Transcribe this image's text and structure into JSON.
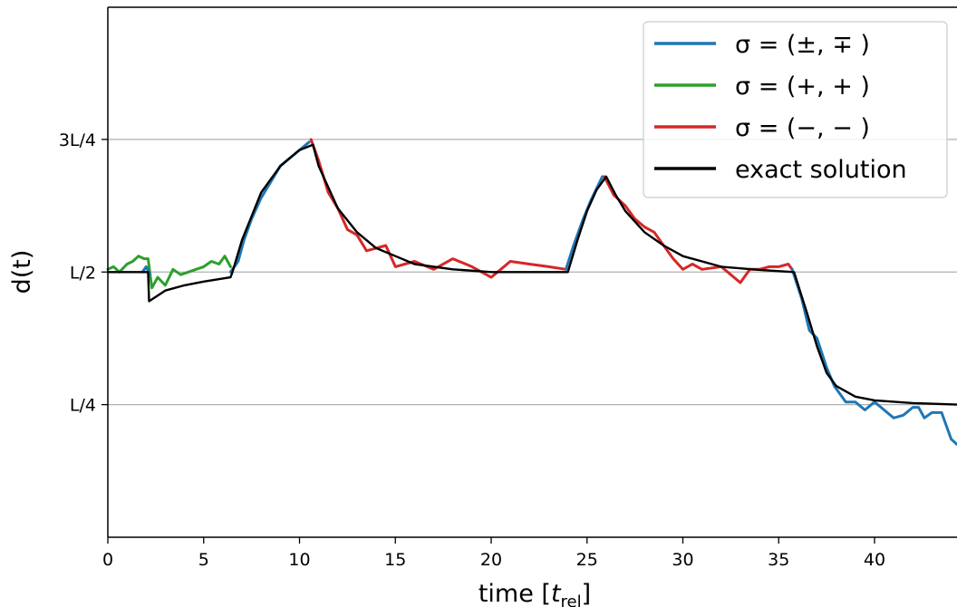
{
  "chart_data": {
    "type": "line",
    "xlabel_main": "time [",
    "xlabel_sym": "t",
    "xlabel_sub": "rel",
    "xlabel_end": "]",
    "ylabel": "d(t)",
    "xlim": [
      0,
      44.3
    ],
    "ylim": [
      0,
      1
    ],
    "grid": "horizontal",
    "legend_position": "top-right",
    "x_ticks": [
      0,
      5,
      10,
      15,
      20,
      25,
      30,
      35,
      40
    ],
    "x_tick_labels": [
      "0",
      "5",
      "10",
      "15",
      "20",
      "25",
      "30",
      "35",
      "40"
    ],
    "y_ticks": [
      0.25,
      0.5,
      0.75
    ],
    "y_tick_labels": [
      "L/4",
      "L/2",
      "3L/4"
    ],
    "colors": {
      "blue": "#1f77b4",
      "green": "#2ca02c",
      "red": "#d62728",
      "black": "#000000"
    },
    "legend": [
      {
        "label": "σ = (±, ∓ )",
        "color": "#1f77b4"
      },
      {
        "label": "σ = (+, + )",
        "color": "#2ca02c"
      },
      {
        "label": "σ = (−, − )",
        "color": "#d62728"
      },
      {
        "label": "exact solution",
        "color": "#000000"
      }
    ],
    "series": [
      {
        "name": "exact solution",
        "color": "#000000",
        "points": [
          [
            0,
            0.5
          ],
          [
            2.1,
            0.5
          ],
          [
            2.15,
            0.445
          ],
          [
            3,
            0.465
          ],
          [
            4,
            0.475
          ],
          [
            5,
            0.482
          ],
          [
            6.4,
            0.49
          ],
          [
            6.5,
            0.5
          ],
          [
            7,
            0.56
          ],
          [
            8,
            0.65
          ],
          [
            9,
            0.7
          ],
          [
            10,
            0.73
          ],
          [
            10.7,
            0.74
          ],
          [
            11,
            0.7
          ],
          [
            12,
            0.62
          ],
          [
            13,
            0.575
          ],
          [
            14,
            0.545
          ],
          [
            15,
            0.53
          ],
          [
            16,
            0.515
          ],
          [
            18,
            0.505
          ],
          [
            20,
            0.5
          ],
          [
            24,
            0.5
          ],
          [
            24.5,
            0.56
          ],
          [
            25,
            0.615
          ],
          [
            25.5,
            0.655
          ],
          [
            26,
            0.68
          ],
          [
            26.5,
            0.645
          ],
          [
            27,
            0.615
          ],
          [
            28,
            0.575
          ],
          [
            29,
            0.55
          ],
          [
            30,
            0.53
          ],
          [
            32,
            0.51
          ],
          [
            34,
            0.504
          ],
          [
            35.8,
            0.5
          ],
          [
            36.5,
            0.42
          ],
          [
            37,
            0.36
          ],
          [
            37.5,
            0.31
          ],
          [
            38,
            0.285
          ],
          [
            39,
            0.265
          ],
          [
            40,
            0.258
          ],
          [
            42,
            0.253
          ],
          [
            44.3,
            0.25
          ]
        ]
      },
      {
        "name": "σ = (+, + )",
        "color": "#2ca02c",
        "points": [
          [
            0,
            0.505
          ],
          [
            0.3,
            0.51
          ],
          [
            0.6,
            0.5
          ],
          [
            1,
            0.515
          ],
          [
            1.3,
            0.52
          ],
          [
            1.6,
            0.53
          ],
          [
            1.9,
            0.525
          ],
          [
            2.1,
            0.525
          ],
          [
            2.3,
            0.47
          ],
          [
            2.6,
            0.49
          ],
          [
            3,
            0.475
          ],
          [
            3.4,
            0.505
          ],
          [
            3.8,
            0.495
          ],
          [
            4.2,
            0.5
          ],
          [
            4.6,
            0.505
          ],
          [
            5,
            0.51
          ],
          [
            5.4,
            0.52
          ],
          [
            5.8,
            0.515
          ],
          [
            6.1,
            0.53
          ],
          [
            6.4,
            0.51
          ]
        ]
      },
      {
        "name": "σ = (±, ∓ )",
        "color": "#1f77b4",
        "points": [
          [
            1.8,
            0.5
          ],
          [
            2.0,
            0.51
          ],
          [
            2.2,
            0.495
          ]
        ]
      },
      {
        "name": "σ = (±, ∓ )",
        "color": "#1f77b4",
        "points": [
          [
            6.4,
            0.5
          ],
          [
            6.8,
            0.52
          ],
          [
            7.1,
            0.56
          ],
          [
            7.5,
            0.6
          ],
          [
            8,
            0.64
          ],
          [
            8.5,
            0.67
          ],
          [
            9,
            0.7
          ],
          [
            9.5,
            0.715
          ],
          [
            10,
            0.73
          ],
          [
            10.5,
            0.745
          ]
        ]
      },
      {
        "name": "σ = (−, − )",
        "color": "#d62728",
        "points": [
          [
            10.6,
            0.75
          ],
          [
            11,
            0.71
          ],
          [
            11.5,
            0.65
          ],
          [
            12,
            0.62
          ],
          [
            12.5,
            0.58
          ],
          [
            13,
            0.57
          ],
          [
            13.5,
            0.54
          ],
          [
            14,
            0.545
          ],
          [
            14.5,
            0.55
          ],
          [
            15,
            0.51
          ],
          [
            16,
            0.52
          ],
          [
            17,
            0.505
          ],
          [
            18,
            0.525
          ],
          [
            19,
            0.51
          ],
          [
            20,
            0.49
          ],
          [
            20.5,
            0.505
          ],
          [
            21,
            0.52
          ],
          [
            22,
            0.515
          ],
          [
            23,
            0.51
          ],
          [
            23.9,
            0.505
          ]
        ]
      },
      {
        "name": "σ = (±, ∓ )",
        "color": "#1f77b4",
        "points": [
          [
            23.9,
            0.505
          ],
          [
            24.3,
            0.55
          ],
          [
            24.8,
            0.6
          ],
          [
            25.2,
            0.635
          ],
          [
            25.8,
            0.68
          ]
        ]
      },
      {
        "name": "σ = (−, − )",
        "color": "#d62728",
        "points": [
          [
            25.9,
            0.68
          ],
          [
            26.4,
            0.645
          ],
          [
            27,
            0.625
          ],
          [
            27.5,
            0.6
          ],
          [
            28,
            0.585
          ],
          [
            28.5,
            0.575
          ],
          [
            29,
            0.55
          ],
          [
            29.5,
            0.525
          ],
          [
            30,
            0.505
          ],
          [
            30.5,
            0.515
          ],
          [
            31,
            0.505
          ],
          [
            32,
            0.51
          ],
          [
            32.5,
            0.495
          ],
          [
            33,
            0.48
          ],
          [
            33.5,
            0.505
          ],
          [
            34,
            0.505
          ],
          [
            34.5,
            0.51
          ],
          [
            35,
            0.51
          ],
          [
            35.5,
            0.515
          ],
          [
            35.7,
            0.505
          ]
        ]
      },
      {
        "name": "σ = (±, ∓ )",
        "color": "#1f77b4",
        "points": [
          [
            35.7,
            0.505
          ],
          [
            36.2,
            0.45
          ],
          [
            36.6,
            0.39
          ],
          [
            37,
            0.375
          ],
          [
            37.5,
            0.32
          ],
          [
            37.9,
            0.285
          ],
          [
            38.5,
            0.255
          ],
          [
            39,
            0.255
          ],
          [
            39.5,
            0.24
          ],
          [
            40,
            0.255
          ],
          [
            40.5,
            0.24
          ],
          [
            41,
            0.225
          ],
          [
            41.5,
            0.23
          ],
          [
            42,
            0.245
          ],
          [
            42.3,
            0.245
          ],
          [
            42.6,
            0.225
          ],
          [
            43,
            0.235
          ],
          [
            43.5,
            0.235
          ],
          [
            44,
            0.185
          ],
          [
            44.3,
            0.175
          ]
        ]
      }
    ]
  }
}
